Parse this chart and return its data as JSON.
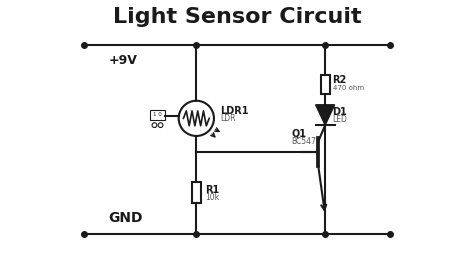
{
  "title": "Light Sensor Circuit",
  "title_fontsize": 16,
  "title_fontweight": "bold",
  "background_color": "#ffffff",
  "line_color": "#1a1a1a",
  "line_width": 1.5,
  "vcc_label": "+9V",
  "gnd_label": "GND",
  "ldr_label": "LDR1",
  "ldr_sublabel": "LDR",
  "r1_label": "R1",
  "r1_sublabel": "10k",
  "r2_label": "R2",
  "r2_sublabel": "470 ohm",
  "d1_label": "D1",
  "d1_sublabel": "LED",
  "q1_label": "Q1",
  "q1_sublabel": "BC547",
  "box_label": "1 0"
}
